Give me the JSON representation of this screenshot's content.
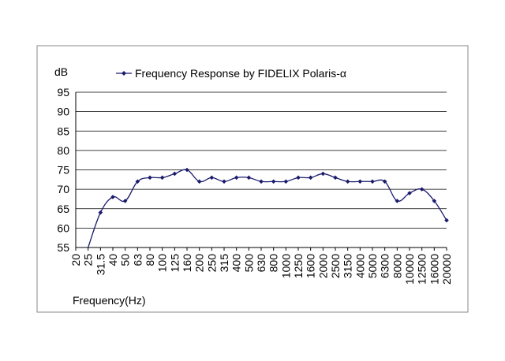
{
  "chart_data": {
    "type": "line",
    "ylabel": "dB",
    "xlabel": "Frequency(Hz)",
    "ylim": [
      55,
      95
    ],
    "y_ticks": [
      "95",
      "90",
      "85",
      "80",
      "75",
      "70",
      "65",
      "60",
      "55"
    ],
    "grid": "horizontal",
    "legend_position": "top",
    "categories": [
      "20",
      "25",
      "31.5",
      "40",
      "50",
      "63",
      "80",
      "100",
      "125",
      "160",
      "200",
      "250",
      "315",
      "400",
      "500",
      "630",
      "800",
      "1000",
      "1250",
      "1600",
      "2000",
      "2500",
      "3150",
      "4000",
      "5000",
      "6300",
      "8000",
      "10000",
      "12500",
      "16000",
      "20000"
    ],
    "series": [
      {
        "name": "Frequency Response by FIDELIX Polaris-α",
        "color": "#1a1a6e",
        "values": [
          null,
          55,
          64,
          68,
          67,
          72,
          73,
          73,
          74,
          75,
          72,
          73,
          72,
          73,
          73,
          72,
          72,
          72,
          73,
          73,
          74,
          73,
          72,
          72,
          72,
          72,
          67,
          69,
          70,
          67,
          62
        ]
      }
    ]
  }
}
